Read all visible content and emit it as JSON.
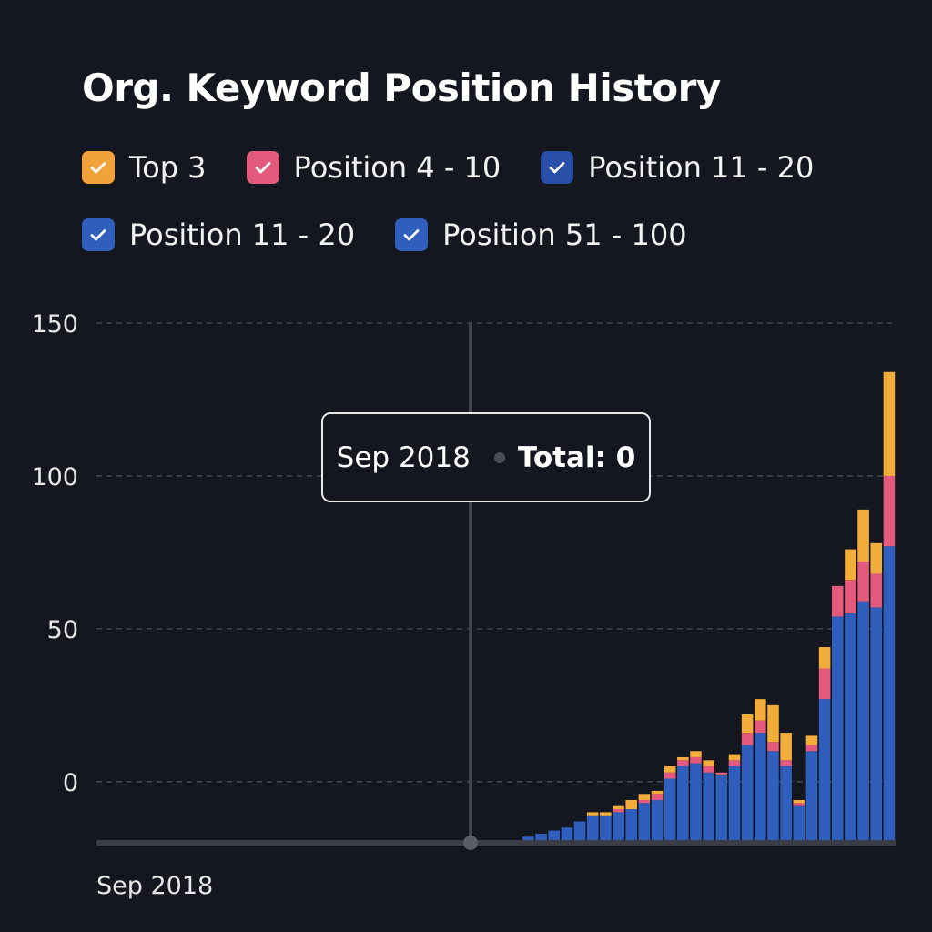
{
  "chart_data": {
    "type": "bar",
    "stacked": true,
    "title": "Org. Keyword Position History",
    "legend_placement": "top-left",
    "grid": true,
    "ylim": [
      -20,
      150
    ],
    "y_ticks": [
      0,
      50,
      100,
      150
    ],
    "x_tick_labels": [
      "Sep 2018"
    ],
    "series_colors": [
      "#2f5ebc",
      "#e35a7c",
      "#f2ad3a"
    ],
    "legend": [
      {
        "label": "Top 3",
        "color": "#f2a23a",
        "checked": true
      },
      {
        "label": "Position 4 - 10",
        "color": "#e35a7c",
        "checked": true
      },
      {
        "label": "Position 11 - 20",
        "color": "#2a4fa8",
        "checked": true
      },
      {
        "label": "Position 11 - 20",
        "color": "#2f5ebc",
        "checked": true
      },
      {
        "label": "Position 51 - 100",
        "color": "#2f5ebc",
        "checked": true
      }
    ],
    "tooltip": {
      "date": "Sep 2018",
      "total_text": "Total: 0"
    },
    "categories_count": 62,
    "base_value": -20,
    "series": [
      {
        "stack": "bottom",
        "values": [
          -20,
          -20,
          -20,
          -20,
          -20,
          -20,
          -20,
          -20,
          -20,
          -20,
          -20,
          -20,
          -20,
          -20,
          -20,
          -20,
          -20,
          -20,
          -20,
          -20,
          -20,
          -20,
          -20,
          -20,
          -20,
          -20,
          -20,
          -20,
          -20,
          -20,
          -20,
          -20,
          -20,
          -18,
          -17,
          -16,
          -15,
          -13,
          -11,
          -11,
          -10,
          -9,
          -7,
          -6,
          1,
          5,
          6,
          3,
          2,
          5,
          12,
          16,
          10,
          5,
          -8,
          10,
          27,
          54,
          55,
          59,
          57,
          77
        ]
      },
      {
        "stack": "middle",
        "values": [
          -20,
          -20,
          -20,
          -20,
          -20,
          -20,
          -20,
          -20,
          -20,
          -20,
          -20,
          -20,
          -20,
          -20,
          -20,
          -20,
          -20,
          -20,
          -20,
          -20,
          -20,
          -20,
          -20,
          -20,
          -20,
          -20,
          -20,
          -20,
          -20,
          -20,
          -20,
          -20,
          -20,
          -18,
          -17,
          -16,
          -15,
          -13,
          -11,
          -11,
          -9,
          -9,
          -6,
          -4,
          3,
          7,
          8,
          5,
          3,
          7,
          16,
          20,
          13,
          7,
          -7,
          12,
          37,
          64,
          66,
          72,
          68,
          100
        ]
      },
      {
        "stack": "top",
        "values": [
          -20,
          -20,
          -20,
          -20,
          -20,
          -20,
          -20,
          -20,
          -20,
          -20,
          -20,
          -20,
          -20,
          -20,
          -20,
          -20,
          -20,
          -20,
          -20,
          -20,
          -20,
          -20,
          -20,
          -20,
          -20,
          -20,
          -20,
          -20,
          -20,
          -20,
          -20,
          -20,
          -20,
          -18,
          -17,
          -16,
          -15,
          -13,
          -10,
          -10,
          -8,
          -6,
          -4,
          -3,
          5,
          8,
          10,
          7,
          3,
          9,
          22,
          27,
          25,
          16,
          -6,
          15,
          44,
          61,
          76,
          89,
          78,
          134
        ]
      }
    ]
  }
}
